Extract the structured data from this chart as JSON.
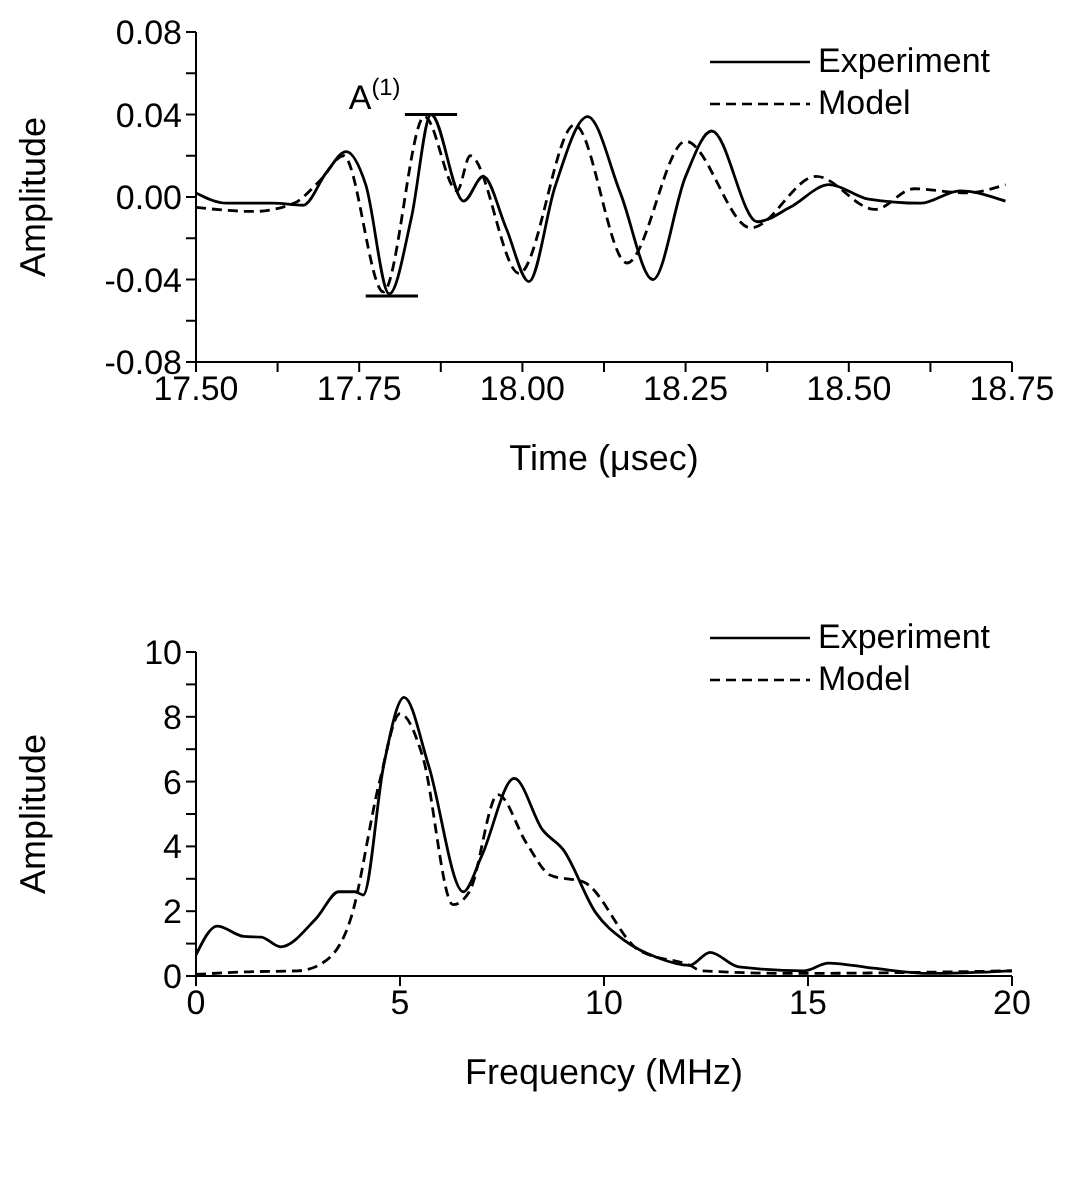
{
  "chart_data": [
    {
      "type": "line",
      "xlabel": "Time (μsec)",
      "ylabel": "Amplitude",
      "xlim": [
        17.5,
        18.75
      ],
      "ylim": [
        -0.08,
        0.08
      ],
      "xticks": [
        {
          "value": 17.5,
          "label": "17.50"
        },
        {
          "value": 17.625,
          "label": null
        },
        {
          "value": 17.75,
          "label": "17.75"
        },
        {
          "value": 17.875,
          "label": null
        },
        {
          "value": 18,
          "label": "18.00"
        },
        {
          "value": 18.125,
          "label": null
        },
        {
          "value": 18.25,
          "label": "18.25"
        },
        {
          "value": 18.375,
          "label": null
        },
        {
          "value": 18.5,
          "label": "18.50"
        },
        {
          "value": 18.625,
          "label": null
        },
        {
          "value": 18.75,
          "label": "18.75"
        }
      ],
      "yticks": [
        {
          "value": -0.08,
          "label": "-0.08"
        },
        {
          "value": -0.06,
          "label": null
        },
        {
          "value": -0.04,
          "label": "-0.04"
        },
        {
          "value": -0.02,
          "label": null
        },
        {
          "value": 0,
          "label": "0.00"
        },
        {
          "value": 0.02,
          "label": null
        },
        {
          "value": 0.04,
          "label": "0.04"
        },
        {
          "value": 0.06,
          "label": null
        },
        {
          "value": 0.08,
          "label": "0.08"
        }
      ],
      "legend": "top right",
      "grid": false,
      "marker": "none",
      "annotations": [
        {
          "text": "A$^{(1)}$",
          "x": 17.85,
          "y": 0.04
        }
      ],
      "series": [
        {
          "name": "Experiment",
          "color": "#000000",
          "line_style": "solid",
          "x": [
            17.5,
            17.547,
            17.618,
            17.664,
            17.7,
            17.73,
            17.76,
            17.796,
            17.83,
            17.86,
            17.91,
            17.94,
            17.975,
            18.01,
            18.05,
            18.1,
            18.15,
            18.2,
            18.25,
            18.29,
            18.36,
            18.41,
            18.47,
            18.53,
            18.61,
            18.67,
            18.74
          ],
          "values": [
            0.002,
            -0.003,
            -0.003,
            -0.004,
            0.012,
            0.022,
            0.006,
            -0.047,
            -0.01,
            0.04,
            -0.002,
            0.01,
            -0.015,
            -0.041,
            0.005,
            0.039,
            0.002,
            -0.04,
            0.01,
            0.032,
            -0.012,
            -0.005,
            0.006,
            -0.001,
            -0.003,
            0.003,
            -0.002
          ]
        },
        {
          "name": "Model",
          "color": "#000000",
          "line_style": "dashed",
          "x": [
            17.5,
            17.588,
            17.65,
            17.69,
            17.726,
            17.787,
            17.85,
            17.9,
            17.92,
            17.995,
            18.08,
            18.16,
            18.25,
            18.35,
            18.45,
            18.54,
            18.6,
            18.68,
            18.74
          ],
          "values": [
            -0.005,
            -0.007,
            -0.003,
            0.008,
            0.02,
            -0.046,
            0.039,
            0.003,
            0.02,
            -0.037,
            0.035,
            -0.032,
            0.027,
            -0.015,
            0.01,
            -0.006,
            0.004,
            0.002,
            0.006
          ]
        },
        {
          "color": "#000000",
          "line_style": "solid",
          "x": [
            17.82,
            17.9
          ],
          "values": [
            0.04,
            0.04
          ]
        },
        {
          "color": "#000000",
          "line_style": "solid",
          "x": [
            17.76,
            17.84
          ],
          "values": [
            -0.048,
            -0.048
          ]
        }
      ]
    },
    {
      "type": "line",
      "xlabel": "Frequency (MHz)",
      "ylabel": "Amplitude",
      "xlim": [
        0,
        20
      ],
      "ylim": [
        0,
        10
      ],
      "xticks": [
        0,
        5,
        10,
        15,
        20
      ],
      "yticks": [
        0,
        {
          "value": 1,
          "label": null
        },
        2,
        {
          "value": 3,
          "label": null
        },
        4,
        {
          "value": 5,
          "label": null
        },
        6,
        {
          "value": 7,
          "label": null
        },
        8,
        {
          "value": 9,
          "label": null
        },
        10
      ],
      "legend": "top right",
      "grid": false,
      "marker": "none",
      "series": [
        {
          "name": "Experiment",
          "color": "#000000",
          "line_style": "solid",
          "x": [
            0,
            0.52,
            1.17,
            1.6,
            2.07,
            2.96,
            3.5,
            3.9,
            4.1,
            4.6,
            5.1,
            5.7,
            6.55,
            7.0,
            7.8,
            8.5,
            9.0,
            9.8,
            10.5,
            11.3,
            12.1,
            12.6,
            13.3,
            14.9,
            15.5,
            16.6,
            18.0,
            20
          ],
          "values": [
            0.65,
            1.54,
            1.22,
            1.2,
            0.9,
            1.8,
            2.6,
            2.6,
            2.5,
            6.5,
            8.6,
            6.5,
            2.6,
            3.7,
            6.1,
            4.5,
            3.9,
            1.95,
            1.1,
            0.57,
            0.33,
            0.73,
            0.28,
            0.16,
            0.4,
            0.24,
            0.08,
            0.16
          ]
        },
        {
          "name": "Model",
          "color": "#000000",
          "line_style": "dashed",
          "x": [
            0,
            1.3,
            2.5,
            3.1,
            3.8,
            4.5,
            5.0,
            5.55,
            6.3,
            6.7,
            7.4,
            8.1,
            8.7,
            9.5,
            10.85,
            12.1,
            12.4,
            14.6,
            20
          ],
          "values": [
            0.05,
            0.13,
            0.16,
            0.4,
            1.8,
            6.0,
            8.1,
            6.8,
            2.2,
            2.6,
            5.6,
            4.1,
            3.1,
            2.9,
            0.8,
            0.33,
            0.16,
            0.08,
            0.16
          ]
        }
      ]
    }
  ]
}
